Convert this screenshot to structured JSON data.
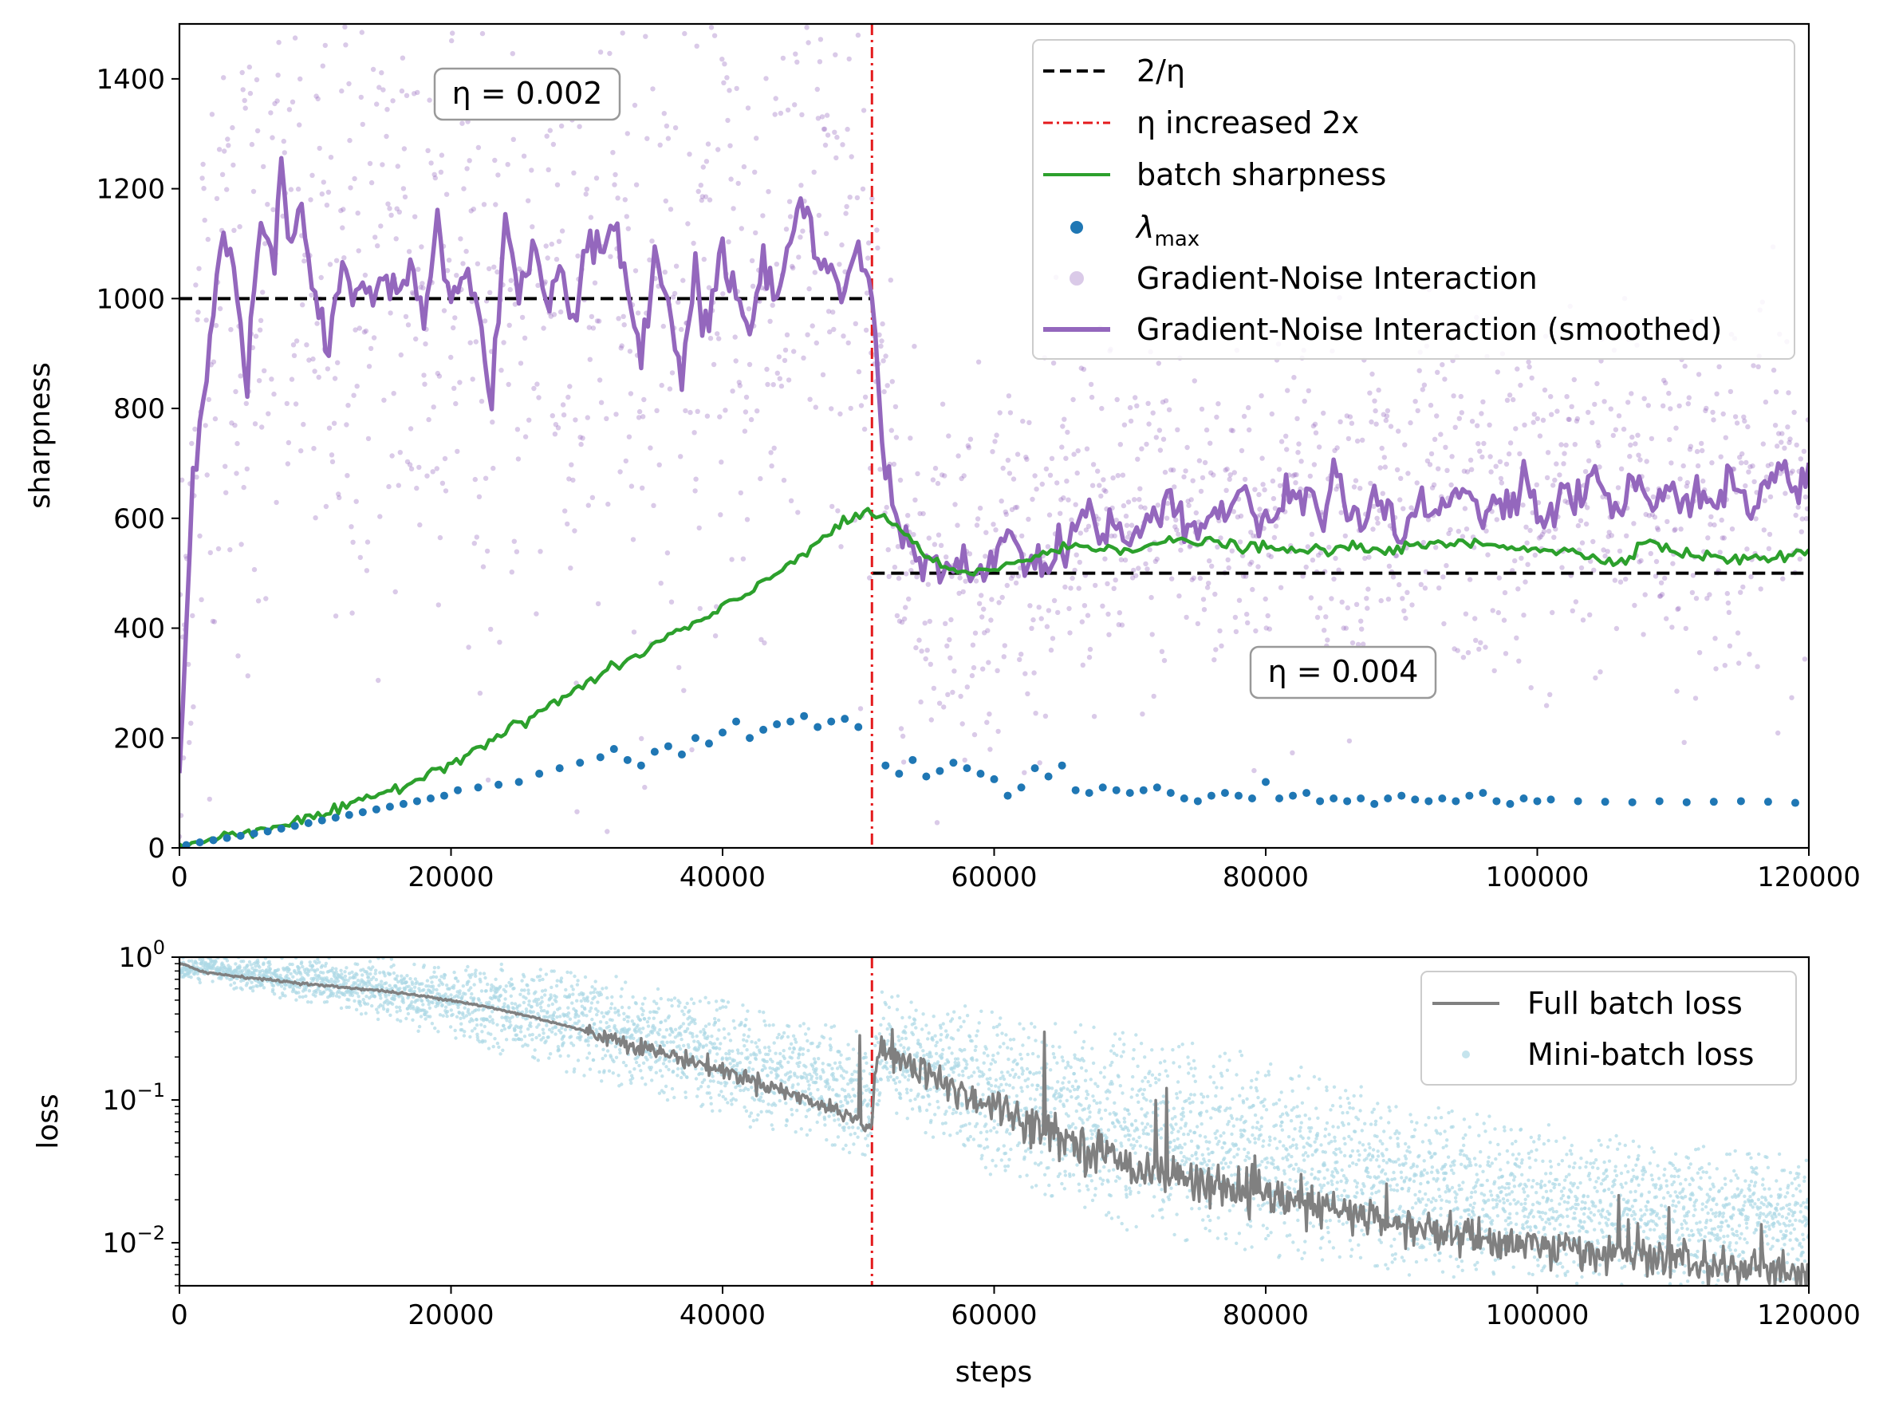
{
  "chart_data": [
    {
      "type": "line",
      "panel": "top",
      "xlabel": "",
      "ylabel": "sharpness",
      "xlim": [
        0,
        120000
      ],
      "ylim": [
        0,
        1500
      ],
      "xticks": [
        0,
        20000,
        40000,
        60000,
        80000,
        100000,
        120000
      ],
      "xtick_labels": [
        "0",
        "20000",
        "40000",
        "60000",
        "80000",
        "100000",
        "120000"
      ],
      "yticks": [
        0,
        200,
        400,
        600,
        800,
        1000,
        1200,
        1400
      ],
      "ytick_labels": [
        "0",
        "200",
        "400",
        "600",
        "800",
        "1000",
        "1200",
        "1400"
      ],
      "grid": false,
      "legend_position": "top-right",
      "lr_change_step": 51000,
      "annotations": [
        {
          "text": "η = 0.002",
          "x": 25000,
          "y": 1370
        },
        {
          "text": "η = 0.004",
          "x": 85000,
          "y": 320
        }
      ],
      "colors": {
        "two_over_eta": "#000000",
        "lr_change": "#e41a1c",
        "batch_sharpness": "#2ca02c",
        "lambda_max": "#1f77b4",
        "gni": "#9467bd"
      },
      "legend": [
        {
          "key": "two_over_eta",
          "label": "2/η",
          "style": "dashed"
        },
        {
          "key": "lr_change",
          "label": "η increased 2x",
          "style": "dashdot"
        },
        {
          "key": "batch_sharpness",
          "label": "batch sharpness",
          "style": "line"
        },
        {
          "key": "lambda_max",
          "label": "λ",
          "sub": "max",
          "style": "dot"
        },
        {
          "key": "gni",
          "label": "Gradient-Noise Interaction",
          "style": "faint-dot"
        },
        {
          "key": "gni_smoothed",
          "label": "Gradient-Noise Interaction (smoothed)",
          "style": "thick-line"
        }
      ],
      "series": [
        {
          "name": "2/η",
          "segments": [
            {
              "x": [
                0,
                51000
              ],
              "y": [
                1000,
                1000
              ]
            },
            {
              "x": [
                51000,
                120000
              ],
              "y": [
                500,
                500
              ]
            }
          ]
        },
        {
          "name": "batch sharpness",
          "x": [
            0,
            3000,
            6000,
            9000,
            12000,
            15000,
            18000,
            21000,
            24000,
            27000,
            30000,
            33000,
            36000,
            39000,
            42000,
            45000,
            48000,
            50000,
            51000,
            52000,
            53000,
            54000,
            55000,
            56000,
            57000,
            58000,
            60000,
            63000,
            66000,
            70000,
            74000,
            78000,
            82000,
            86000,
            90000,
            94000,
            98000,
            102000,
            106000,
            108000,
            110000,
            114000,
            118000,
            120000
          ],
          "y": [
            5,
            20,
            35,
            50,
            70,
            100,
            130,
            170,
            210,
            255,
            300,
            340,
            385,
            420,
            465,
            520,
            575,
            605,
            610,
            600,
            580,
            560,
            530,
            510,
            505,
            495,
            510,
            530,
            550,
            545,
            560,
            550,
            540,
            545,
            545,
            555,
            550,
            540,
            520,
            560,
            540,
            525,
            530,
            535
          ]
        },
        {
          "name": "λmax",
          "x": [
            500,
            1500,
            2500,
            3500,
            4500,
            5500,
            6500,
            7500,
            8500,
            9500,
            10500,
            11500,
            12500,
            13500,
            14500,
            15500,
            16500,
            17500,
            18500,
            19500,
            20500,
            22000,
            23500,
            25000,
            26500,
            28000,
            29500,
            31000,
            32000,
            33000,
            34000,
            35000,
            36000,
            37000,
            38000,
            39000,
            40000,
            41000,
            42000,
            43000,
            44000,
            45000,
            46000,
            47000,
            48000,
            49000,
            50000,
            52000,
            53000,
            54000,
            55000,
            56000,
            57000,
            58000,
            59000,
            60000,
            61000,
            62000,
            63000,
            64000,
            65000,
            66000,
            67000,
            68000,
            69000,
            70000,
            71000,
            72000,
            73000,
            74000,
            75000,
            76000,
            77000,
            78000,
            79000,
            80000,
            81000,
            82000,
            83000,
            84000,
            85000,
            86000,
            87000,
            88000,
            89000,
            90000,
            91000,
            92000,
            93000,
            94000,
            95000,
            96000,
            97000,
            98000,
            99000,
            100000,
            101000,
            103000,
            105000,
            107000,
            109000,
            111000,
            113000,
            115000,
            117000,
            119000
          ],
          "y": [
            5,
            10,
            14,
            18,
            22,
            26,
            30,
            35,
            40,
            45,
            50,
            55,
            60,
            65,
            70,
            75,
            80,
            85,
            90,
            95,
            105,
            110,
            115,
            120,
            135,
            145,
            155,
            165,
            180,
            160,
            150,
            175,
            185,
            170,
            200,
            190,
            210,
            230,
            200,
            215,
            225,
            230,
            240,
            220,
            230,
            235,
            220,
            150,
            135,
            160,
            130,
            140,
            155,
            145,
            135,
            125,
            95,
            110,
            145,
            130,
            150,
            105,
            100,
            110,
            105,
            100,
            105,
            110,
            100,
            90,
            85,
            95,
            100,
            95,
            90,
            120,
            90,
            95,
            100,
            85,
            90,
            85,
            90,
            80,
            90,
            95,
            88,
            85,
            90,
            85,
            95,
            100,
            85,
            80,
            90,
            85,
            88,
            85,
            84,
            83,
            85,
            83,
            84,
            85,
            84,
            82
          ]
        },
        {
          "name": "Gradient-Noise Interaction (smoothed)",
          "x": [
            0,
            1000,
            2000,
            3000,
            4000,
            5000,
            6000,
            7000,
            7500,
            8000,
            9000,
            10000,
            11000,
            12000,
            13000,
            14000,
            15000,
            16000,
            17000,
            18000,
            19000,
            20000,
            21000,
            22000,
            23000,
            24000,
            25000,
            26000,
            27000,
            28000,
            29000,
            30000,
            31000,
            32000,
            33000,
            34000,
            35000,
            36000,
            37000,
            38000,
            39000,
            40000,
            41000,
            42000,
            43000,
            44000,
            45000,
            46000,
            47000,
            48000,
            49000,
            50000,
            51000,
            52000,
            53000,
            54000,
            55000,
            56000,
            57000,
            58000,
            59000,
            60000,
            61000,
            62000,
            63000,
            64000,
            65000,
            66000,
            67000,
            68000,
            69000,
            70000,
            71000,
            72000,
            73000,
            74000,
            75000,
            76000,
            77000,
            78000,
            79000,
            80000,
            81000,
            82000,
            83000,
            84000,
            85000,
            86000,
            87000,
            88000,
            89000,
            90000,
            91000,
            92000,
            93000,
            94000,
            95000,
            96000,
            97000,
            98000,
            99000,
            100000,
            101000,
            102000,
            103000,
            104000,
            105000,
            106000,
            107000,
            108000,
            109000,
            110000,
            111000,
            112000,
            113000,
            114000,
            115000,
            116000,
            117000,
            118000,
            119000,
            120000
          ],
          "y": [
            120,
            700,
            880,
            1100,
            1050,
            850,
            1150,
            1050,
            1270,
            1080,
            1150,
            1000,
            900,
            1050,
            1030,
            1000,
            1060,
            1000,
            1050,
            950,
            1150,
            1000,
            1050,
            980,
            820,
            1150,
            1000,
            1100,
            1020,
            1050,
            950,
            1100,
            1080,
            1150,
            1000,
            900,
            1100,
            1000,
            850,
            1050,
            950,
            1100,
            1000,
            950,
            1050,
            1000,
            1100,
            1180,
            1050,
            1100,
            1000,
            1120,
            1000,
            680,
            580,
            530,
            510,
            500,
            505,
            520,
            500,
            515,
            600,
            520,
            540,
            500,
            560,
            580,
            620,
            560,
            600,
            540,
            580,
            620,
            640,
            600,
            570,
            620,
            600,
            660,
            600,
            580,
            620,
            640,
            650,
            600,
            680,
            620,
            580,
            640,
            620,
            560,
            600,
            640,
            600,
            660,
            620,
            600,
            640,
            600,
            680,
            620,
            600,
            660,
            620,
            680,
            640,
            600,
            680,
            640,
            620,
            660,
            600,
            640,
            620,
            680,
            640,
            620,
            660,
            700,
            640,
            680
          ]
        }
      ]
    },
    {
      "type": "line",
      "panel": "bottom",
      "xlabel": "steps",
      "ylabel": "loss",
      "xscale": "linear",
      "yscale": "log",
      "xlim": [
        0,
        120000
      ],
      "ylim": [
        0.005,
        1
      ],
      "xticks": [
        0,
        20000,
        40000,
        60000,
        80000,
        100000,
        120000
      ],
      "xtick_labels": [
        "0",
        "20000",
        "40000",
        "60000",
        "80000",
        "100000",
        "120000"
      ],
      "yticks": [
        1,
        0.1,
        0.01
      ],
      "ytick_labels": [
        {
          "base": "10",
          "exp": "0"
        },
        {
          "base": "10",
          "exp": "−1"
        },
        {
          "base": "10",
          "exp": "−2"
        }
      ],
      "grid": false,
      "legend_position": "top-right",
      "lr_change_step": 51000,
      "colors": {
        "full_batch": "#808080",
        "mini_batch": "#add8e6",
        "lr_change": "#e41a1c"
      },
      "legend": [
        {
          "key": "full_batch",
          "label": "Full batch loss",
          "style": "line"
        },
        {
          "key": "mini_batch",
          "label": "Mini-batch loss",
          "style": "faint-dot"
        }
      ],
      "series": [
        {
          "name": "Full batch loss",
          "x": [
            0,
            2000,
            5000,
            10000,
            15000,
            20000,
            25000,
            30000,
            35000,
            40000,
            45000,
            50000,
            51000,
            51500,
            54000,
            58000,
            62000,
            66000,
            70000,
            75000,
            80000,
            85000,
            90000,
            95000,
            100000,
            105000,
            110000,
            115000,
            120000
          ],
          "y": [
            0.9,
            0.78,
            0.72,
            0.64,
            0.58,
            0.5,
            0.4,
            0.3,
            0.22,
            0.16,
            0.11,
            0.075,
            0.058,
            0.24,
            0.16,
            0.11,
            0.075,
            0.05,
            0.035,
            0.027,
            0.021,
            0.017,
            0.013,
            0.011,
            0.0095,
            0.0085,
            0.0075,
            0.0065,
            0.0058
          ]
        },
        {
          "name": "Mini-batch loss",
          "band": {
            "x": [
              0,
              10000,
              20000,
              30000,
              40000,
              50000,
              51000,
              51500,
              60000,
              70000,
              80000,
              90000,
              100000,
              110000,
              120000
            ],
            "upper": [
              1.0,
              1.0,
              1.0,
              0.8,
              0.5,
              0.3,
              0.25,
              0.6,
              0.45,
              0.3,
              0.2,
              0.1,
              0.07,
              0.05,
              0.04
            ],
            "lower": [
              0.7,
              0.45,
              0.25,
              0.14,
              0.07,
              0.04,
              0.03,
              0.08,
              0.025,
              0.012,
              0.008,
              0.006,
              0.005,
              0.005,
              0.005
            ]
          }
        }
      ]
    }
  ]
}
